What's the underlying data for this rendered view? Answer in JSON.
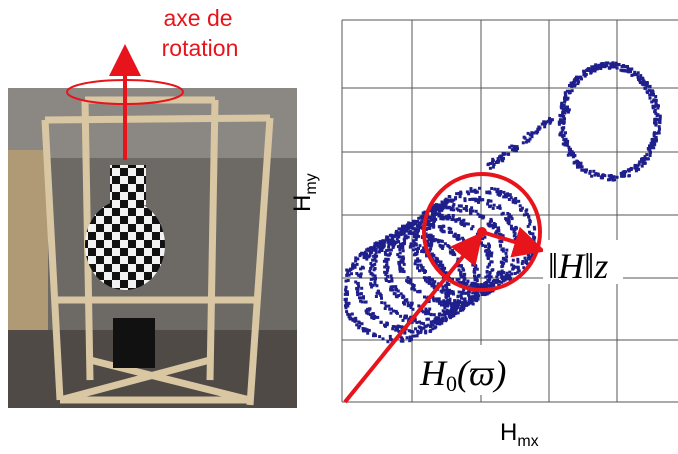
{
  "photo": {
    "caption_lines": [
      "axe de",
      "rotation"
    ]
  },
  "plot": {
    "y_label": {
      "main": "H",
      "sub": "my"
    },
    "x_label": {
      "main": "H",
      "sub": "mx"
    },
    "radius_label": "‖H‖z",
    "center_label": {
      "main": "H",
      "sub": "0",
      "arg": "(ϖ)"
    }
  }
}
